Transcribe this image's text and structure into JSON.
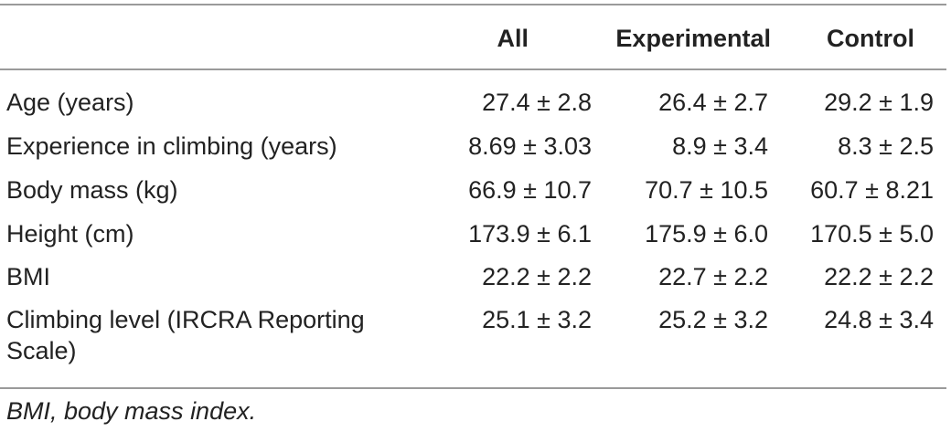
{
  "table": {
    "headers": [
      "",
      "All",
      "Experimental",
      "Control"
    ],
    "rows": [
      {
        "label": "Age (years)",
        "all": "27.4 ± 2.8",
        "experimental": "26.4 ± 2.7",
        "control": "29.2 ± 1.9"
      },
      {
        "label": "Experience in climbing (years)",
        "all": "8.69 ± 3.03",
        "experimental": "8.9 ± 3.4",
        "control": "8.3 ± 2.5"
      },
      {
        "label": "Body mass (kg)",
        "all": "66.9 ± 10.7",
        "experimental": "70.7 ± 10.5",
        "control": "60.7 ± 8.21"
      },
      {
        "label": "Height (cm)",
        "all": "173.9 ± 6.1",
        "experimental": "175.9 ± 6.0",
        "control": "170.5 ± 5.0"
      },
      {
        "label": "BMI",
        "all": "22.2 ± 2.2",
        "experimental": "22.7 ± 2.2",
        "control": "22.2 ± 2.2"
      },
      {
        "label": "Climbing level (IRCRA Reporting Scale)",
        "all": "25.1 ± 3.2",
        "experimental": "25.2 ± 3.2",
        "control": "24.8 ± 3.4"
      }
    ],
    "footnote": "BMI, body mass index."
  }
}
